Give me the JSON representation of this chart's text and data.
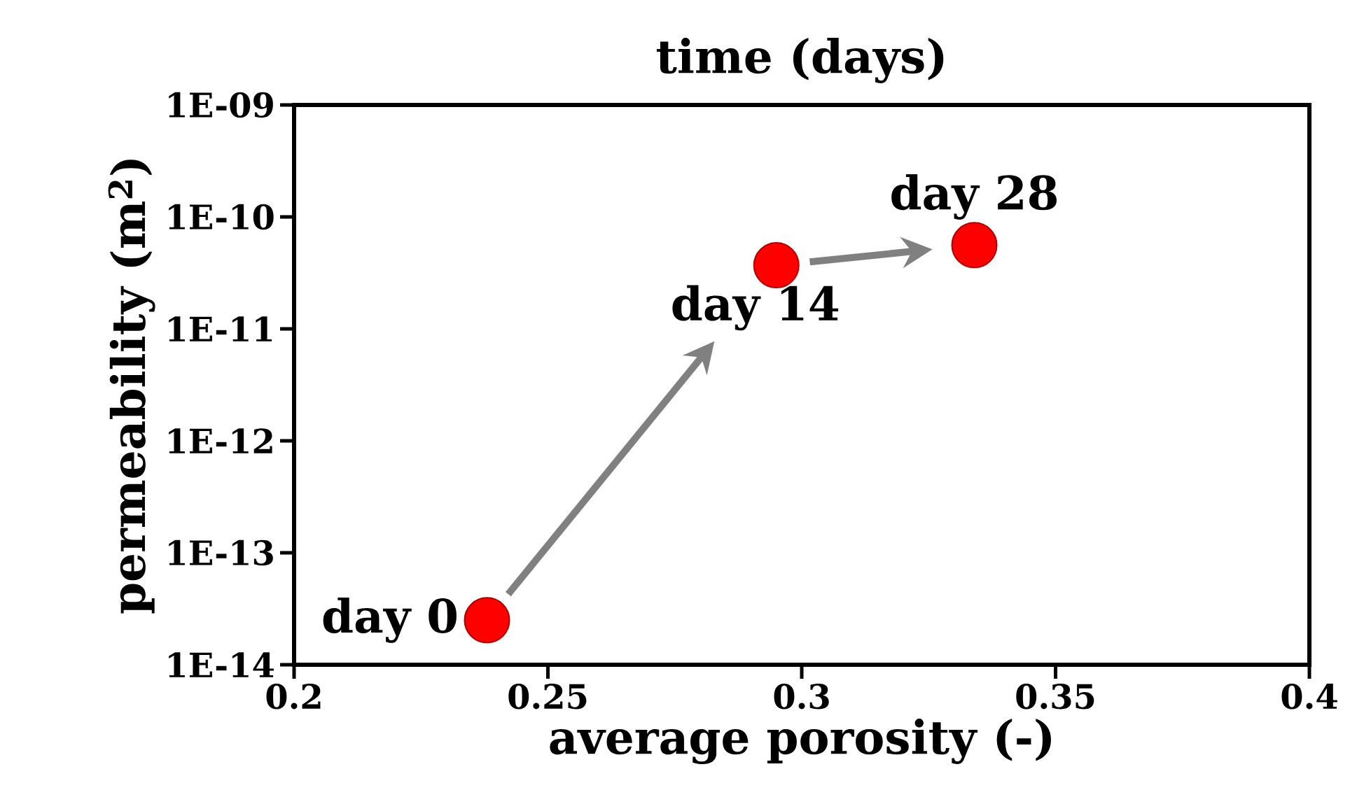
{
  "chart_data": {
    "type": "scatter",
    "title": "time (days)",
    "xlabel": "average porosity (-)",
    "ylabel": "permeability (m$^{2}$)",
    "x": [
      0.238,
      0.295,
      0.334
    ],
    "series": [
      {
        "color": "#ff0000",
        "values": [
          2.5e-14,
          3.7e-11,
          5.6e-11
        ]
      }
    ],
    "marker": "circle",
    "log": "y",
    "xlim": [
      0.2,
      0.4
    ],
    "xticks": [
      0.2,
      0.25,
      0.3,
      0.35,
      0.4
    ],
    "ylim": [
      1e-14,
      1e-09
    ],
    "yticks": [
      {
        "value": 1e-14,
        "label": "1E-14"
      },
      {
        "value": 1e-13,
        "label": "1E-13"
      },
      {
        "value": 1e-12,
        "label": "1E-12"
      },
      {
        "value": 1e-11,
        "label": "1E-11"
      },
      {
        "value": 1e-10,
        "label": "1E-10"
      },
      {
        "value": 1e-09,
        "label": "1E-09"
      }
    ],
    "annotations": [
      {
        "text": "day 0",
        "x": 0.238,
        "y": 2.5e-14
      },
      {
        "text": "day 14",
        "x": 0.295,
        "y": 3.7e-11
      },
      {
        "text": "day 28",
        "x": 0.334,
        "y": 5.6e-11
      }
    ]
  }
}
